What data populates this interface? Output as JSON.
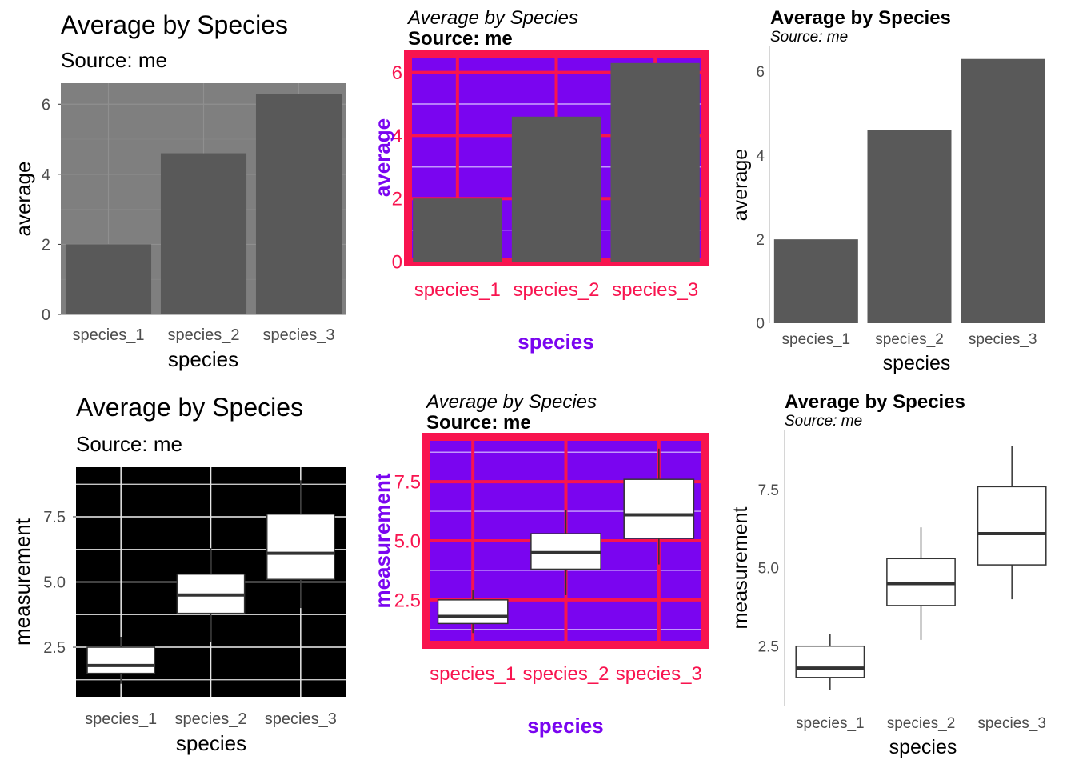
{
  "chart_data": [
    {
      "type": "bar",
      "title": "Average by Species",
      "subtitle": "Source: me",
      "xlabel": "species",
      "ylabel": "average",
      "categories": [
        "species_1",
        "species_2",
        "species_3"
      ],
      "values": [
        2.0,
        4.6,
        6.3
      ],
      "ylim": [
        0,
        6.6
      ],
      "yticks": [
        "0",
        "2",
        "4",
        "6"
      ],
      "style": "gray panel, no gridline emphasis",
      "colors": {
        "panel": "#7f7f7f",
        "bar": "#595959",
        "grid": "#8c8c8c"
      }
    },
    {
      "type": "bar",
      "title": "Average by Species",
      "subtitle": "Source: me",
      "xlabel": "species",
      "ylabel": "average",
      "categories": [
        "species_1",
        "species_2",
        "species_3"
      ],
      "values": [
        2.0,
        4.6,
        6.3
      ],
      "ylim": [
        0,
        6.6
      ],
      "yticks": [
        "0",
        "2",
        "4",
        "6"
      ],
      "style": "purple panel with red border and red gridlines",
      "colors": {
        "panel": "#7a05f0",
        "border": "#f8144f",
        "bar": "#595959",
        "axis_text": "#f8144f",
        "axis_title": "#7a05f0"
      }
    },
    {
      "type": "bar",
      "title": "Average by Species",
      "subtitle": "Source: me",
      "xlabel": "species",
      "ylabel": "average",
      "categories": [
        "species_1",
        "species_2",
        "species_3"
      ],
      "values": [
        2.0,
        4.6,
        6.3
      ],
      "ylim": [
        0,
        6.6
      ],
      "yticks": [
        "0",
        "2",
        "4",
        "6"
      ],
      "style": "minimal, no grid, left axis line",
      "colors": {
        "bar": "#595959",
        "axis": "#c8c8c8"
      }
    },
    {
      "type": "box",
      "title": "Average by Species",
      "subtitle": "Source: me",
      "xlabel": "species",
      "ylabel": "measurement",
      "categories": [
        "species_1",
        "species_2",
        "species_3"
      ],
      "boxes": [
        {
          "min": 1.1,
          "q1": 1.5,
          "median": 1.8,
          "q3": 2.5,
          "max": 2.9
        },
        {
          "min": 2.7,
          "q1": 3.8,
          "median": 4.5,
          "q3": 5.3,
          "max": 6.3
        },
        {
          "min": 4.0,
          "q1": 5.1,
          "median": 6.1,
          "q3": 7.6,
          "max": 8.9
        }
      ],
      "ylim": [
        0.6,
        9.4
      ],
      "yticks": [
        "2.5",
        "5.0",
        "7.5"
      ],
      "style": "light gridlines on white",
      "colors": {
        "box": "#333333",
        "grid": "#ebebeb"
      }
    },
    {
      "type": "box",
      "title": "Average by Species",
      "subtitle": "Source: me",
      "xlabel": "species",
      "ylabel": "measurement",
      "categories": [
        "species_1",
        "species_2",
        "species_3"
      ],
      "boxes": [
        {
          "min": 1.1,
          "q1": 1.5,
          "median": 1.8,
          "q3": 2.5,
          "max": 2.9
        },
        {
          "min": 2.7,
          "q1": 3.8,
          "median": 4.5,
          "q3": 5.3,
          "max": 6.3
        },
        {
          "min": 4.0,
          "q1": 5.1,
          "median": 6.1,
          "q3": 7.6,
          "max": 8.9
        }
      ],
      "ylim": [
        0.6,
        9.4
      ],
      "yticks": [
        "2.5",
        "5.0",
        "7.5"
      ],
      "style": "purple panel with red border and red gridlines",
      "colors": {
        "panel": "#7a05f0",
        "border": "#f8144f",
        "box": "#333333",
        "axis_text": "#f8144f",
        "axis_title": "#7a05f0"
      }
    },
    {
      "type": "box",
      "title": "Average by Species",
      "subtitle": "Source: me",
      "xlabel": "species",
      "ylabel": "measurement",
      "categories": [
        "species_1",
        "species_2",
        "species_3"
      ],
      "boxes": [
        {
          "min": 1.1,
          "q1": 1.5,
          "median": 1.8,
          "q3": 2.5,
          "max": 2.9
        },
        {
          "min": 2.7,
          "q1": 3.8,
          "median": 4.5,
          "q3": 5.3,
          "max": 6.3
        },
        {
          "min": 4.0,
          "q1": 5.1,
          "median": 6.1,
          "q3": 7.6,
          "max": 8.9
        }
      ],
      "ylim": [
        0.6,
        9.4
      ],
      "yticks": [
        "2.5",
        "5.0",
        "7.5"
      ],
      "style": "minimal, no grid, left axis line",
      "colors": {
        "box": "#333333",
        "axis": "#c8c8c8"
      }
    }
  ]
}
